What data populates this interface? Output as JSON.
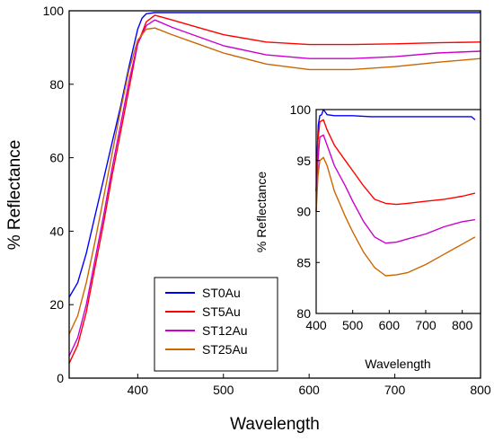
{
  "chart_data": [
    {
      "type": "line",
      "xlabel": "Wavelength",
      "ylabel": "% Reflectance",
      "xlim": [
        320,
        800
      ],
      "ylim": [
        0,
        100
      ],
      "xticks": [
        400,
        500,
        600,
        700,
        800
      ],
      "yticks": [
        0,
        20,
        40,
        60,
        80,
        100
      ],
      "grid": false,
      "legend_position": "lower-left",
      "series": [
        {
          "name": "ST0Au",
          "color": "#0000ff",
          "x": [
            320,
            330,
            340,
            350,
            360,
            370,
            380,
            390,
            400,
            405,
            410,
            420,
            440,
            470,
            500,
            550,
            600,
            650,
            700,
            750,
            800
          ],
          "y": [
            22,
            26,
            34,
            44,
            54,
            64,
            74,
            85,
            95,
            98,
            99.2,
            99.5,
            99.5,
            99.5,
            99.5,
            99.5,
            99.5,
            99.5,
            99.5,
            99.5,
            99.5
          ]
        },
        {
          "name": "ST5Au",
          "color": "#ff0000",
          "x": [
            320,
            330,
            340,
            350,
            360,
            370,
            380,
            390,
            400,
            410,
            420,
            440,
            470,
            500,
            550,
            600,
            650,
            700,
            750,
            800
          ],
          "y": [
            4,
            9,
            18,
            30,
            42,
            55,
            67,
            79,
            91,
            97,
            98.8,
            97.5,
            95.5,
            93.5,
            91.5,
            90.8,
            90.8,
            91,
            91.3,
            91.5
          ]
        },
        {
          "name": "ST12Au",
          "color": "#cc00cc",
          "x": [
            320,
            330,
            340,
            350,
            360,
            370,
            380,
            390,
            400,
            410,
            420,
            440,
            470,
            500,
            550,
            600,
            650,
            700,
            750,
            800
          ],
          "y": [
            6,
            11,
            20,
            32,
            44,
            57,
            69,
            81,
            91,
            96,
            97.5,
            95.5,
            93,
            90.5,
            88,
            87,
            87,
            87.5,
            88.5,
            89
          ]
        },
        {
          "name": "ST25Au",
          "color": "#cc6600",
          "x": [
            320,
            330,
            340,
            350,
            360,
            370,
            380,
            390,
            400,
            410,
            420,
            440,
            470,
            500,
            550,
            600,
            650,
            700,
            750,
            800
          ],
          "y": [
            12,
            17,
            26,
            37,
            49,
            61,
            73,
            84,
            92,
            95,
            95.3,
            93.5,
            91,
            88.5,
            85.5,
            84,
            84,
            84.8,
            86,
            87
          ]
        }
      ]
    },
    {
      "type": "line",
      "xlabel": "Wavelength",
      "ylabel": "% Reflectance",
      "xlim": [
        400,
        850
      ],
      "ylim": [
        80,
        100
      ],
      "xticks": [
        400,
        500,
        600,
        700,
        800
      ],
      "yticks": [
        80,
        85,
        90,
        95,
        100
      ],
      "grid": false,
      "series": [
        {
          "name": "ST0Au",
          "color": "#0000ff",
          "x": [
            400,
            403,
            406,
            410,
            415,
            420,
            430,
            450,
            500,
            550,
            600,
            650,
            700,
            750,
            800,
            825,
            835
          ],
          "y": [
            92,
            96,
            98.5,
            99.4,
            99.5,
            100,
            99.5,
            99.4,
            99.4,
            99.3,
            99.3,
            99.3,
            99.3,
            99.3,
            99.3,
            99.3,
            99
          ]
        },
        {
          "name": "ST5Au",
          "color": "#ff0000",
          "x": [
            400,
            405,
            410,
            420,
            430,
            450,
            480,
            500,
            530,
            560,
            590,
            620,
            650,
            700,
            750,
            800,
            835
          ],
          "y": [
            92,
            97,
            98.8,
            99,
            98,
            96.5,
            95,
            94,
            92.5,
            91.2,
            90.8,
            90.7,
            90.8,
            91,
            91.2,
            91.5,
            91.8
          ]
        },
        {
          "name": "ST12Au",
          "color": "#cc00cc",
          "x": [
            400,
            405,
            410,
            420,
            430,
            450,
            480,
            500,
            530,
            560,
            590,
            620,
            650,
            700,
            750,
            800,
            835
          ],
          "y": [
            90,
            95,
            97.3,
            97.5,
            96.5,
            94.5,
            92.5,
            91,
            89,
            87.5,
            86.9,
            87,
            87.3,
            87.8,
            88.5,
            89,
            89.2
          ]
        },
        {
          "name": "ST25Au",
          "color": "#cc6600",
          "x": [
            400,
            405,
            410,
            420,
            430,
            450,
            480,
            500,
            530,
            560,
            590,
            620,
            650,
            700,
            750,
            800,
            835
          ],
          "y": [
            90,
            93.5,
            95,
            95.3,
            94.5,
            92,
            89.5,
            88,
            86,
            84.5,
            83.7,
            83.8,
            84,
            84.8,
            85.8,
            86.8,
            87.5
          ]
        }
      ]
    }
  ]
}
